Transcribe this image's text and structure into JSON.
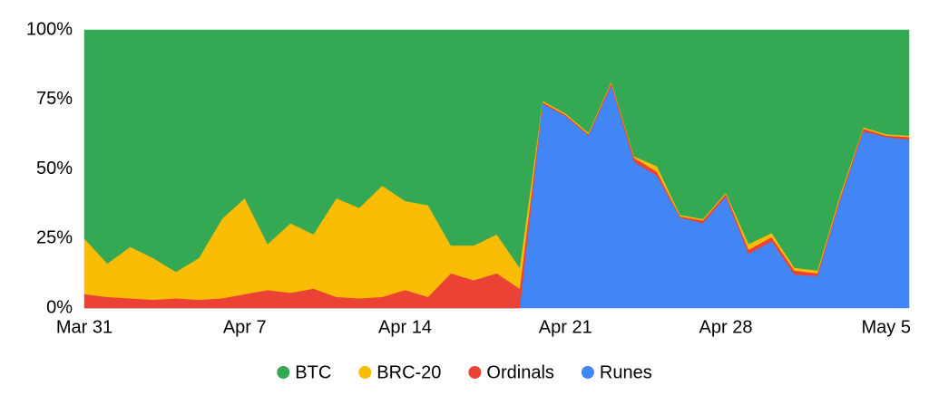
{
  "chart_data": {
    "type": "stacked_area_100",
    "categories": [
      "Mar 31",
      null,
      null,
      null,
      null,
      null,
      null,
      "Apr 7",
      null,
      null,
      null,
      null,
      null,
      null,
      "Apr 14",
      null,
      null,
      null,
      null,
      null,
      null,
      "Apr 21",
      null,
      null,
      null,
      null,
      null,
      null,
      "Apr 28",
      null,
      null,
      null,
      null,
      null,
      null,
      "May 5",
      null
    ],
    "series": [
      {
        "name": "BTC",
        "color": "#34a853",
        "values": [
          75,
          84,
          78,
          82,
          87,
          82,
          68,
          60.5,
          77,
          69.5,
          73.5,
          60.5,
          64,
          56,
          61.5,
          63,
          77.5,
          77.5,
          73.5,
          85.5,
          25.5,
          30,
          37,
          18.5,
          45.5,
          49,
          66.5,
          68,
          58.5,
          77,
          73,
          85.5,
          86.5,
          59,
          35,
          37.5,
          38
        ]
      },
      {
        "name": "BRC-20",
        "color": "#fbbc04",
        "values": [
          20,
          12,
          18.5,
          15,
          9.5,
          15,
          28.5,
          34.5,
          16.5,
          25,
          19.5,
          35.5,
          32.5,
          40,
          32,
          33,
          10,
          12.5,
          14,
          7.5,
          0.5,
          0.5,
          0.5,
          0.5,
          0.5,
          2,
          0.5,
          0.5,
          0.5,
          2,
          1.5,
          1,
          1,
          1,
          0.5,
          0.5,
          0.5
        ]
      },
      {
        "name": "Ordinals",
        "color": "#ea4335",
        "values": [
          5,
          4,
          3.5,
          3,
          3.5,
          3,
          3.5,
          5,
          6.5,
          5.5,
          7,
          4,
          3.5,
          4,
          6.5,
          4,
          12.5,
          10,
          12.5,
          7,
          0.5,
          0.5,
          0.5,
          1,
          1.5,
          1.5,
          0.5,
          1,
          1,
          1.5,
          1.5,
          1.5,
          1,
          1,
          1,
          0.5,
          1
        ]
      },
      {
        "name": "Runes",
        "color": "#4285f4",
        "values": [
          0,
          0,
          0,
          0,
          0,
          0,
          0,
          0,
          0,
          0,
          0,
          0,
          0,
          0,
          0,
          0,
          0,
          0,
          0,
          0,
          73.5,
          69,
          62,
          80,
          52.5,
          47.5,
          32.5,
          30.5,
          40,
          19.5,
          24,
          12,
          11.5,
          39,
          63.5,
          61.5,
          60.5
        ]
      }
    ],
    "ylim": [
      0,
      100
    ],
    "yticks": [
      {
        "value": 0,
        "label": "0%"
      },
      {
        "value": 25,
        "label": "25%"
      },
      {
        "value": 50,
        "label": "50%"
      },
      {
        "value": 75,
        "label": "75%"
      },
      {
        "value": 100,
        "label": "100%"
      }
    ],
    "legend": "bottom"
  }
}
